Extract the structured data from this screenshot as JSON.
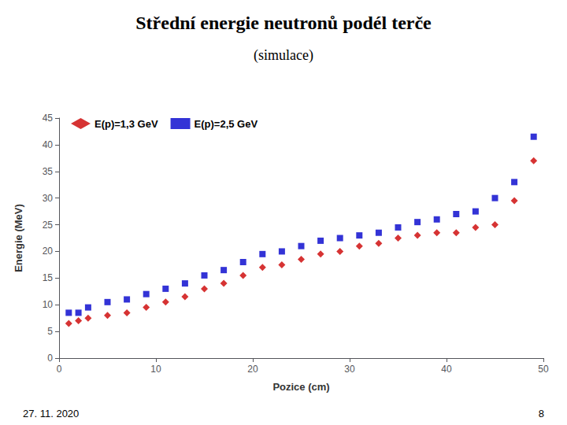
{
  "chart_data": {
    "type": "scatter",
    "title": "Střední energie neutronů podél terče",
    "subtitle": "(simulace)",
    "xlabel": "Pozice (cm)",
    "ylabel": "Energie (MeV)",
    "footer_left": "27. 11. 2020",
    "footer_right": "8",
    "xlim": [
      0,
      50
    ],
    "ylim": [
      0,
      45
    ],
    "xticks": [
      0,
      10,
      20,
      30,
      40,
      50
    ],
    "yticks": [
      0,
      5,
      10,
      15,
      20,
      25,
      30,
      35,
      40,
      45
    ],
    "grid": false,
    "legend": "upper left",
    "series": [
      {
        "name": "E(p)=1,3 GeV",
        "color": "#cc0000",
        "marker": "diamond",
        "x": [
          1,
          2,
          3,
          5,
          7,
          9,
          11,
          13,
          15,
          17,
          19,
          21,
          23,
          25,
          27,
          29,
          31,
          33,
          35,
          37,
          39,
          41,
          43,
          45,
          47,
          49
        ],
        "values": [
          6.5,
          7.0,
          7.5,
          8.0,
          8.5,
          9.5,
          10.5,
          11.5,
          13.0,
          14.0,
          15.5,
          17.0,
          17.5,
          18.5,
          19.5,
          20.0,
          21.0,
          21.5,
          22.5,
          23.0,
          23.5,
          23.5,
          24.5,
          25.0,
          29.5,
          37.0
        ]
      },
      {
        "name": "E(p)=2,5 GeV",
        "color": "#0000cc",
        "marker": "square",
        "x": [
          1,
          2,
          3,
          5,
          7,
          9,
          11,
          13,
          15,
          17,
          19,
          21,
          23,
          25,
          27,
          29,
          31,
          33,
          35,
          37,
          39,
          41,
          43,
          45,
          47,
          49
        ],
        "values": [
          8.5,
          8.5,
          9.5,
          10.5,
          11.0,
          12.0,
          13.0,
          14.0,
          15.5,
          16.5,
          18.0,
          19.5,
          20.0,
          21.0,
          22.0,
          22.5,
          23.0,
          23.5,
          24.5,
          25.5,
          26.0,
          27.0,
          27.5,
          30.0,
          33.0,
          41.5
        ]
      }
    ]
  }
}
